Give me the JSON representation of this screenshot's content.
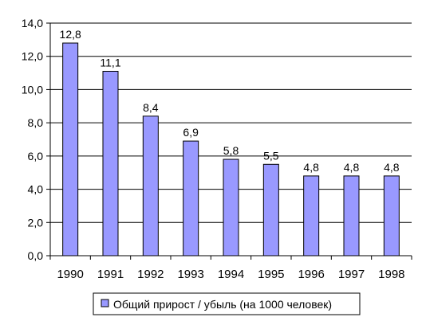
{
  "chart_data": {
    "type": "bar",
    "categories": [
      "1990",
      "1991",
      "1992",
      "1993",
      "1994",
      "1995",
      "1996",
      "1997",
      "1998"
    ],
    "series": [
      {
        "name": "Общий прирост / убыль (на 1000 человек)",
        "values": [
          12.8,
          11.1,
          8.4,
          6.9,
          5.8,
          5.5,
          4.8,
          4.8,
          4.8
        ],
        "labels": [
          "12,8",
          "11,1",
          "8,4",
          "6,9",
          "5,8",
          "5,5",
          "4,8",
          "4,8",
          "4,8"
        ],
        "color": "#9999ff"
      }
    ],
    "yticks": [
      "0,0",
      "2,0",
      "4,0",
      "6,0",
      "8,0",
      "10,0",
      "12,0",
      "14,0"
    ],
    "ylim": [
      0,
      14
    ],
    "grid": true,
    "legend_position": "bottom",
    "title": "",
    "xlabel": "",
    "ylabel": ""
  }
}
